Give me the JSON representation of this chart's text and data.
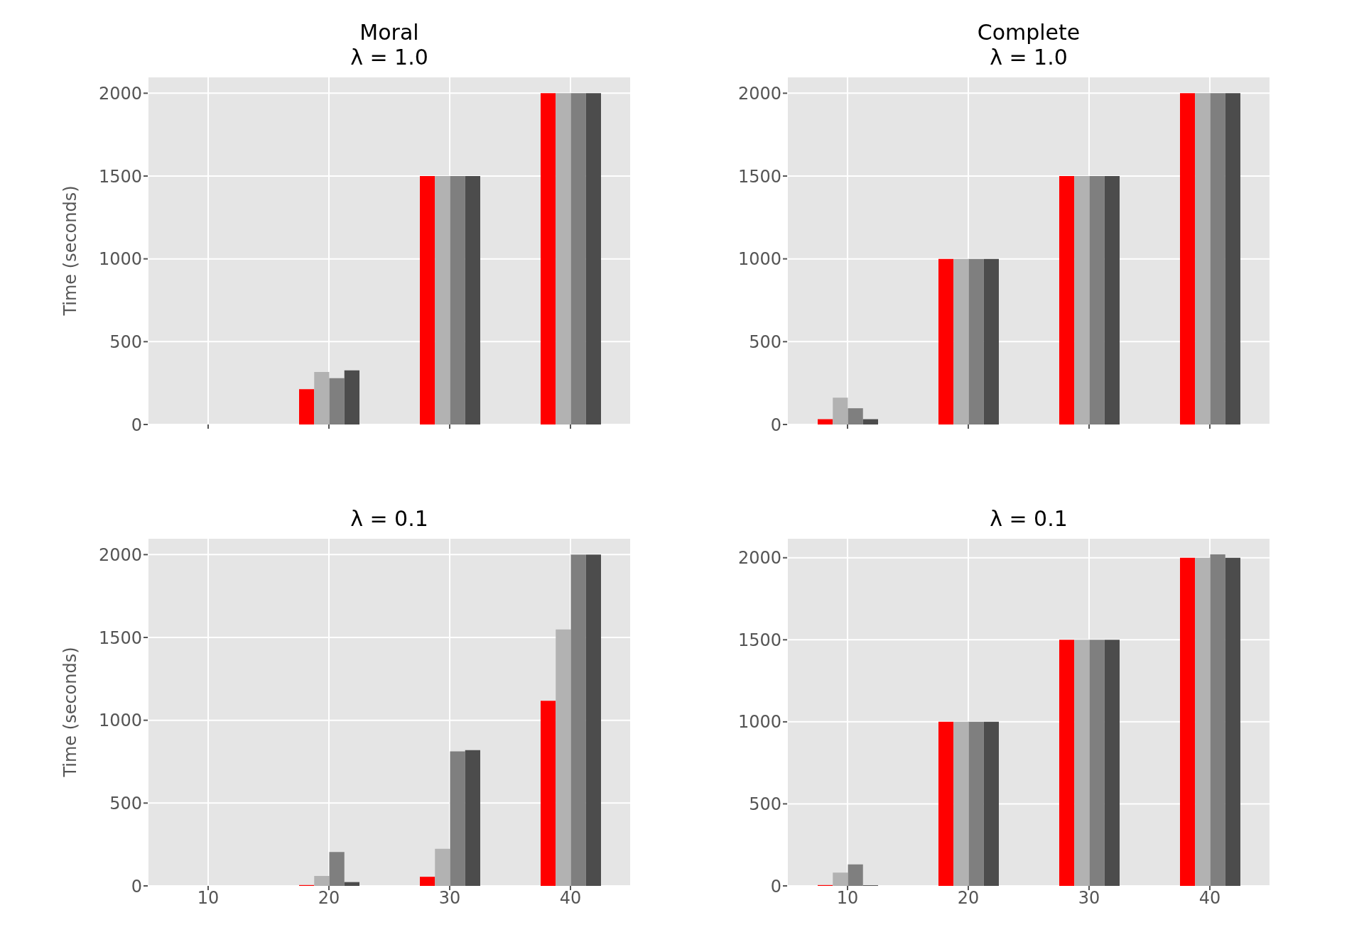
{
  "chart_data": [
    {
      "type": "bar",
      "title": "Moral",
      "subtitle": "λ = 1.0",
      "ylabel": "Time (seconds)",
      "x": [
        10,
        20,
        30,
        40
      ],
      "xlim": [
        5,
        45
      ],
      "xticks": [
        10,
        20,
        30,
        40
      ],
      "ylim": [
        0,
        2100
      ],
      "yticks": [
        0,
        500,
        1000,
        1500,
        2000
      ],
      "grid": true,
      "tick_labels": "y",
      "series": [
        {
          "color": "#ff0000",
          "values": [
            0,
            213,
            1500,
            2000
          ]
        },
        {
          "color": "#b2b2b2",
          "values": [
            0,
            317,
            1500,
            2000
          ]
        },
        {
          "color": "#7f7f7f",
          "values": [
            0,
            280,
            1500,
            2000
          ]
        },
        {
          "color": "#4c4c4c",
          "values": [
            0,
            327,
            1500,
            2000
          ]
        }
      ]
    },
    {
      "type": "bar",
      "title": "Complete",
      "subtitle": "λ = 1.0",
      "x": [
        10,
        20,
        30,
        40
      ],
      "xlim": [
        5,
        45
      ],
      "xticks": [
        10,
        20,
        30,
        40
      ],
      "ylim": [
        0,
        2100
      ],
      "yticks": [
        0,
        500,
        1000,
        1500,
        2000
      ],
      "grid": true,
      "tick_labels": "y",
      "series": [
        {
          "color": "#ff0000",
          "values": [
            32,
            1000,
            1500,
            2000
          ]
        },
        {
          "color": "#b2b2b2",
          "values": [
            162,
            1000,
            1500,
            2000
          ]
        },
        {
          "color": "#7f7f7f",
          "values": [
            98,
            1000,
            1500,
            2000
          ]
        },
        {
          "color": "#4c4c4c",
          "values": [
            32,
            1000,
            1500,
            2000
          ]
        }
      ]
    },
    {
      "type": "bar",
      "title": "λ = 0.1",
      "ylabel": "Time (seconds)",
      "x": [
        10,
        20,
        30,
        40
      ],
      "xlim": [
        5,
        45
      ],
      "xticks": [
        10,
        20,
        30,
        40
      ],
      "ylim": [
        0,
        2100
      ],
      "yticks": [
        0,
        500,
        1000,
        1500,
        2000
      ],
      "grid": true,
      "series": [
        {
          "color": "#ff0000",
          "values": [
            0,
            5,
            55,
            1117
          ]
        },
        {
          "color": "#b2b2b2",
          "values": [
            0,
            60,
            224,
            1548
          ]
        },
        {
          "color": "#7f7f7f",
          "values": [
            0,
            205,
            812,
            2000
          ]
        },
        {
          "color": "#4c4c4c",
          "values": [
            0,
            23,
            820,
            2000
          ]
        }
      ]
    },
    {
      "type": "bar",
      "title": "λ = 0.1",
      "x": [
        10,
        20,
        30,
        40
      ],
      "xlim": [
        5,
        45
      ],
      "xticks": [
        10,
        20,
        30,
        40
      ],
      "ylim": [
        0,
        2120
      ],
      "yticks": [
        0,
        500,
        1000,
        1500,
        2000
      ],
      "grid": true,
      "series": [
        {
          "color": "#ff0000",
          "values": [
            5,
            1000,
            1500,
            2000
          ]
        },
        {
          "color": "#b2b2b2",
          "values": [
            81,
            1000,
            1500,
            2000
          ]
        },
        {
          "color": "#7f7f7f",
          "values": [
            131,
            1000,
            1500,
            2020
          ]
        },
        {
          "color": "#4c4c4c",
          "values": [
            4,
            1000,
            1500,
            2000
          ]
        }
      ]
    }
  ]
}
